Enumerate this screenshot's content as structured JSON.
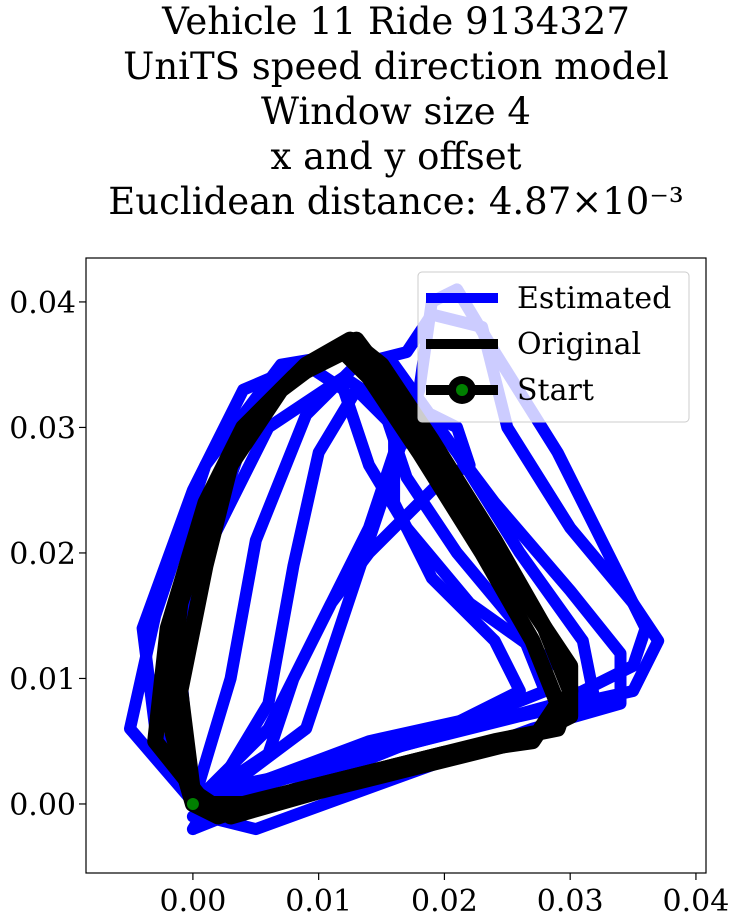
{
  "chart_data": {
    "type": "line",
    "title_lines": [
      "Vehicle 11 Ride 9134327",
      "UniTS speed direction model",
      "Window size 4",
      "x and y offset",
      "Euclidean distance: 4.87×10⁻³"
    ],
    "xlabel": "",
    "ylabel": "",
    "xlim": [
      -0.0085,
      0.0408
    ],
    "ylim": [
      -0.0055,
      0.0435
    ],
    "xticks": [
      0.0,
      0.01,
      0.02,
      0.03,
      0.04
    ],
    "xtick_labels": [
      "0.00",
      "0.01",
      "0.02",
      "0.03",
      "0.04"
    ],
    "yticks": [
      0.0,
      0.01,
      0.02,
      0.03,
      0.04
    ],
    "ytick_labels": [
      "0.00",
      "0.01",
      "0.02",
      "0.03",
      "0.04"
    ],
    "grid": false,
    "legend_position": "top-right",
    "series": [
      {
        "name": "Estimated",
        "color": "#0000ff",
        "loops": [
          [
            [
              0.0,
              0.0
            ],
            [
              -0.003,
              0.006
            ],
            [
              -0.004,
              0.014
            ],
            [
              0.0,
              0.025
            ],
            [
              0.004,
              0.033
            ],
            [
              0.011,
              0.036
            ],
            [
              0.016,
              0.035
            ],
            [
              0.021,
              0.028
            ],
            [
              0.026,
              0.02
            ],
            [
              0.031,
              0.013
            ],
            [
              0.032,
              0.008
            ],
            [
              0.028,
              0.006
            ],
            [
              0.018,
              0.003
            ],
            [
              0.008,
              0.001
            ],
            [
              0.0,
              -0.001
            ]
          ],
          [
            [
              0.001,
              -0.001
            ],
            [
              -0.005,
              0.006
            ],
            [
              -0.003,
              0.015
            ],
            [
              0.001,
              0.027
            ],
            [
              0.007,
              0.035
            ],
            [
              0.013,
              0.036
            ],
            [
              0.018,
              0.032
            ],
            [
              0.024,
              0.024
            ],
            [
              0.03,
              0.017
            ],
            [
              0.034,
              0.012
            ],
            [
              0.034,
              0.008
            ],
            [
              0.027,
              0.006
            ],
            [
              0.016,
              0.002
            ],
            [
              0.005,
              -0.002
            ],
            [
              0.001,
              -0.001
            ]
          ],
          [
            [
              0.0,
              0.001
            ],
            [
              -0.002,
              0.009
            ],
            [
              0.001,
              0.02
            ],
            [
              0.006,
              0.03
            ],
            [
              0.012,
              0.034
            ],
            [
              0.015,
              0.032
            ],
            [
              0.017,
              0.026
            ],
            [
              0.021,
              0.02
            ],
            [
              0.026,
              0.014
            ],
            [
              0.028,
              0.009
            ],
            [
              0.023,
              0.007
            ],
            [
              0.014,
              0.005
            ],
            [
              0.006,
              0.002
            ],
            [
              0.001,
              0.001
            ]
          ],
          [
            [
              0.0,
              0.0
            ],
            [
              0.003,
              0.01
            ],
            [
              0.005,
              0.021
            ],
            [
              0.009,
              0.031
            ],
            [
              0.013,
              0.035
            ],
            [
              0.017,
              0.036
            ],
            [
              0.019,
              0.039
            ],
            [
              0.023,
              0.038
            ],
            [
              0.025,
              0.03
            ],
            [
              0.03,
              0.022
            ],
            [
              0.035,
              0.016
            ],
            [
              0.037,
              0.013
            ],
            [
              0.035,
              0.009
            ],
            [
              0.026,
              0.007
            ],
            [
              0.014,
              0.004
            ],
            [
              0.004,
              0.001
            ],
            [
              0.0,
              0.0
            ]
          ],
          [
            [
              0.0,
              -0.002
            ],
            [
              0.006,
              0.008
            ],
            [
              0.008,
              0.019
            ],
            [
              0.01,
              0.028
            ],
            [
              0.013,
              0.033
            ],
            [
              0.016,
              0.03
            ],
            [
              0.016,
              0.024
            ],
            [
              0.019,
              0.018
            ],
            [
              0.024,
              0.013
            ],
            [
              0.026,
              0.009
            ],
            [
              0.02,
              0.006
            ],
            [
              0.01,
              0.002
            ],
            [
              0.0,
              -0.002
            ]
          ],
          [
            [
              0.001,
              0.0
            ],
            [
              0.009,
              0.006
            ],
            [
              0.012,
              0.015
            ],
            [
              0.015,
              0.024
            ],
            [
              0.018,
              0.033
            ],
            [
              0.019,
              0.04
            ],
            [
              0.021,
              0.041
            ],
            [
              0.024,
              0.036
            ],
            [
              0.029,
              0.028
            ],
            [
              0.033,
              0.02
            ],
            [
              0.036,
              0.014
            ],
            [
              0.035,
              0.011
            ],
            [
              0.029,
              0.008
            ],
            [
              0.018,
              0.005
            ],
            [
              0.007,
              0.002
            ],
            [
              0.001,
              0.0
            ]
          ],
          [
            [
              0.0,
              0.0
            ],
            [
              0.006,
              0.004
            ],
            [
              0.008,
              0.01
            ],
            [
              0.011,
              0.016
            ],
            [
              0.014,
              0.02
            ],
            [
              0.017,
              0.023
            ],
            [
              0.02,
              0.026
            ],
            [
              0.022,
              0.027
            ],
            [
              0.021,
              0.03
            ],
            [
              0.019,
              0.031
            ],
            [
              0.016,
              0.028
            ],
            [
              0.014,
              0.022
            ],
            [
              0.01,
              0.014
            ],
            [
              0.006,
              0.006
            ],
            [
              0.0,
              0.0
            ]
          ],
          [
            [
              0.0,
              0.0
            ],
            [
              -0.001,
              0.011
            ],
            [
              0.002,
              0.023
            ],
            [
              0.005,
              0.032
            ],
            [
              0.009,
              0.035
            ],
            [
              0.012,
              0.033
            ],
            [
              0.014,
              0.027
            ],
            [
              0.017,
              0.022
            ],
            [
              0.022,
              0.016
            ],
            [
              0.029,
              0.011
            ],
            [
              0.031,
              0.008
            ],
            [
              0.025,
              0.007
            ],
            [
              0.012,
              0.004
            ],
            [
              0.003,
              0.001
            ],
            [
              0.0,
              0.0
            ]
          ]
        ]
      },
      {
        "name": "Original",
        "color": "#000000",
        "loops": [
          [
            [
              0.0,
              0.0
            ],
            [
              -0.002,
              0.007
            ],
            [
              -0.001,
              0.016
            ],
            [
              0.002,
              0.025
            ],
            [
              0.005,
              0.031
            ],
            [
              0.009,
              0.035
            ],
            [
              0.0125,
              0.037
            ],
            [
              0.015,
              0.035
            ],
            [
              0.019,
              0.029
            ],
            [
              0.024,
              0.021
            ],
            [
              0.028,
              0.014
            ],
            [
              0.03,
              0.009
            ],
            [
              0.029,
              0.006
            ],
            [
              0.024,
              0.005
            ],
            [
              0.016,
              0.003
            ],
            [
              0.008,
              0.001
            ],
            [
              0.002,
              -0.001
            ],
            [
              0.0,
              0.0
            ]
          ],
          [
            [
              0.001,
              0.0
            ],
            [
              -0.003,
              0.005
            ],
            [
              -0.002,
              0.014
            ],
            [
              0.001,
              0.024
            ],
            [
              0.004,
              0.03
            ],
            [
              0.008,
              0.034
            ],
            [
              0.012,
              0.036
            ],
            [
              0.014,
              0.034
            ],
            [
              0.018,
              0.028
            ],
            [
              0.023,
              0.02
            ],
            [
              0.027,
              0.013
            ],
            [
              0.029,
              0.008
            ],
            [
              0.027,
              0.005
            ],
            [
              0.02,
              0.004
            ],
            [
              0.012,
              0.002
            ],
            [
              0.004,
              0.0
            ],
            [
              0.001,
              0.0
            ]
          ],
          [
            [
              0.0,
              0.001
            ],
            [
              -0.001,
              0.009
            ],
            [
              0.001,
              0.019
            ],
            [
              0.003,
              0.027
            ],
            [
              0.007,
              0.033
            ],
            [
              0.011,
              0.036
            ],
            [
              0.013,
              0.037
            ],
            [
              0.016,
              0.033
            ],
            [
              0.021,
              0.025
            ],
            [
              0.026,
              0.017
            ],
            [
              0.03,
              0.011
            ],
            [
              0.03,
              0.007
            ],
            [
              0.026,
              0.005
            ],
            [
              0.018,
              0.003
            ],
            [
              0.01,
              0.001
            ],
            [
              0.003,
              -0.001
            ],
            [
              0.0,
              0.001
            ]
          ]
        ]
      }
    ],
    "start": {
      "name": "Start",
      "x": 0.0,
      "y": 0.0,
      "marker_color": "#008000",
      "ring_color": "#000000"
    }
  }
}
